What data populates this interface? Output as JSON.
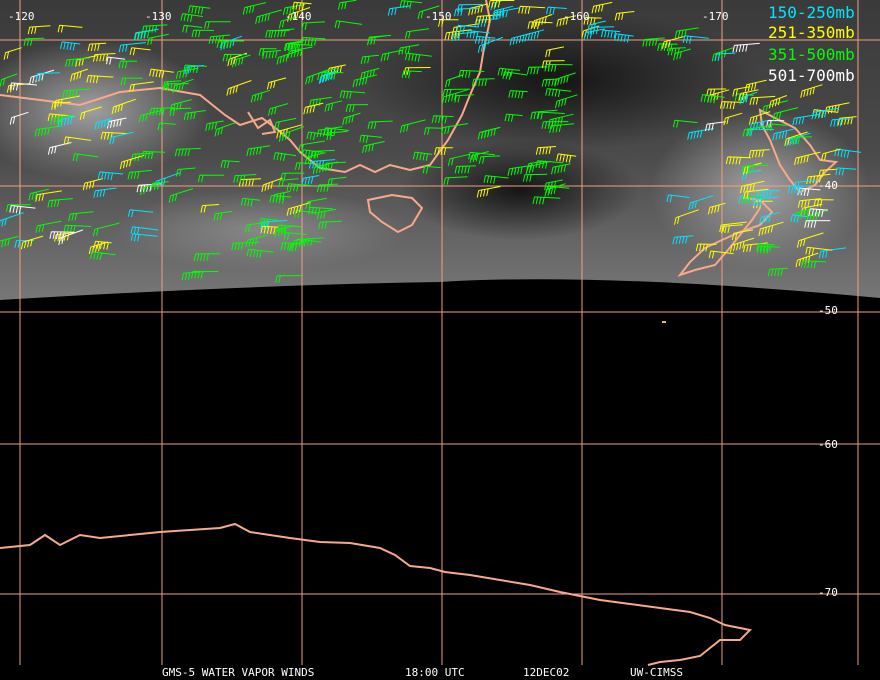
{
  "colors": {
    "grid": "#f0a080",
    "coast": "#f7a98a",
    "background": "#000000",
    "layer_150_250": "#00e5ff",
    "layer_251_350": "#ffff00",
    "layer_351_500": "#00ff00",
    "layer_501_700": "#ffffff"
  },
  "longitude_labels": [
    "-120",
    "-130",
    "-140",
    "-150",
    "-160",
    "-170"
  ],
  "latitude_labels": [
    "-40",
    "-50",
    "-60",
    "-70"
  ],
  "legend": [
    {
      "label": "150-250mb",
      "color": "#00e5ff"
    },
    {
      "label": "251-350mb",
      "color": "#ffff00"
    },
    {
      "label": "351-500mb",
      "color": "#00ff00"
    },
    {
      "label": "501-700mb",
      "color": "#ffffff"
    }
  ],
  "footer": {
    "product": "GMS-5 WATER VAPOR WINDS",
    "time": "18:00 UTC",
    "date": "12DEC02",
    "source": "UW-CIMSS"
  }
}
